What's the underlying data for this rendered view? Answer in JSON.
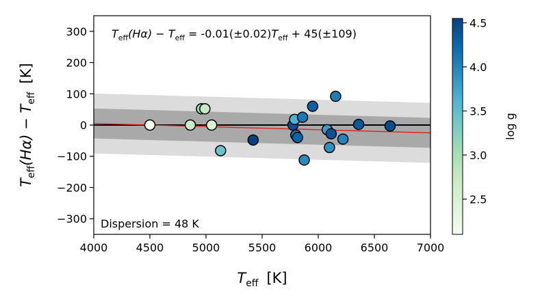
{
  "chart_data": {
    "type": "scatter",
    "title": "",
    "xlabel": {
      "main": "T",
      "sub": "eff",
      "unit": "[K]"
    },
    "ylabel": {
      "t1": "T",
      "s1": "eff",
      "paren": "(Hα) − ",
      "t2": "T",
      "s2": "eff",
      "unit": "[K]"
    },
    "xlim": [
      4000,
      7000
    ],
    "ylim": [
      -350,
      350
    ],
    "xticks": [
      4000,
      4500,
      5000,
      5500,
      6000,
      6500,
      7000
    ],
    "yticks": [
      -300,
      -200,
      -100,
      0,
      100,
      200,
      300
    ],
    "xtick_labels": [
      "4000",
      "4500",
      "5000",
      "5500",
      "6000",
      "6500",
      "7000"
    ],
    "ytick_labels": [
      "−300",
      "−200",
      "−100",
      "0",
      "100",
      "200",
      "300"
    ],
    "fit": {
      "slope": -0.01,
      "intercept": 45,
      "line_color": "#e41a1c"
    },
    "zero_line_color": "#000000",
    "bands": [
      {
        "halfwidth": 96,
        "color": "#dcdcdc"
      },
      {
        "halfwidth": 48,
        "color": "#a9a9a9"
      }
    ],
    "equation": {
      "t1": "T",
      "s1": "eff",
      "paren": "(Hα) − ",
      "t2": "T",
      "s2": "eff",
      "rest1": " = -0.01(±0.02)",
      "t3": "T",
      "s3": "eff",
      "rest2": " + 45(±109)"
    },
    "dispersion_label": "Dispersion = 48 K",
    "colorbar": {
      "label": "log g",
      "min": 2.1,
      "max": 4.55,
      "ticks": [
        2.5,
        3.0,
        3.5,
        4.0,
        4.5
      ],
      "tick_labels": [
        "2.5",
        "3.0",
        "3.5",
        "4.0",
        "4.5"
      ],
      "colormap": [
        "#f7fcf0",
        "#e0f3db",
        "#ccebc5",
        "#a8ddb5",
        "#7bccc4",
        "#4eb3d3",
        "#2b8cbe",
        "#0868ac",
        "#084081"
      ]
    },
    "points": [
      {
        "x": 4500,
        "y": 0,
        "logg": 2.1
      },
      {
        "x": 4860,
        "y": 0,
        "logg": 2.7
      },
      {
        "x": 4960,
        "y": 52,
        "logg": 3.1
      },
      {
        "x": 4990,
        "y": 52,
        "logg": 2.75
      },
      {
        "x": 5050,
        "y": 0,
        "logg": 2.5
      },
      {
        "x": 5130,
        "y": -82,
        "logg": 3.45
      },
      {
        "x": 5420,
        "y": -48,
        "logg": 4.55
      },
      {
        "x": 5775,
        "y": 0,
        "logg": 4.45
      },
      {
        "x": 5790,
        "y": 18,
        "logg": 3.65
      },
      {
        "x": 5800,
        "y": -32,
        "logg": 4.15
      },
      {
        "x": 5815,
        "y": -40,
        "logg": 4.25
      },
      {
        "x": 5860,
        "y": 25,
        "logg": 4.1
      },
      {
        "x": 5875,
        "y": -112,
        "logg": 3.95
      },
      {
        "x": 5950,
        "y": 60,
        "logg": 4.3
      },
      {
        "x": 6080,
        "y": -15,
        "logg": 3.8
      },
      {
        "x": 6100,
        "y": -72,
        "logg": 3.9
      },
      {
        "x": 6115,
        "y": -28,
        "logg": 4.4
      },
      {
        "x": 6155,
        "y": 92,
        "logg": 4.05
      },
      {
        "x": 6220,
        "y": -45,
        "logg": 4.0
      },
      {
        "x": 6360,
        "y": 2,
        "logg": 4.35
      },
      {
        "x": 6640,
        "y": -3,
        "logg": 4.45
      }
    ]
  }
}
